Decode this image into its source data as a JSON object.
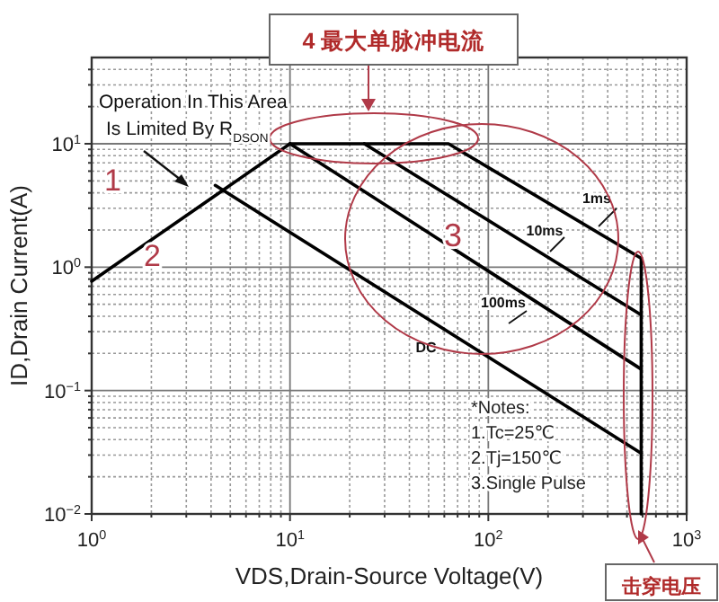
{
  "chart_data": {
    "type": "line",
    "xlabel": "VDS,Drain-Source Voltage(V)",
    "ylabel": "ID,Drain Current(A)",
    "log": "xy",
    "xlim": [
      1,
      1000
    ],
    "ylim": [
      0.01,
      50
    ],
    "xticks": [
      {
        "value": 1,
        "label": "10$^{0}$"
      },
      {
        "value": 10,
        "label": "10$^{1}$"
      },
      {
        "value": 100,
        "label": "10$^{2}$"
      },
      {
        "value": 1000,
        "label": "10$^{3}$"
      }
    ],
    "yticks": [
      {
        "value": 0.01,
        "label": "10$^{−2}$"
      },
      {
        "value": 0.1,
        "label": "10$^{−1}$"
      },
      {
        "value": 1,
        "label": "10$^{0}$"
      },
      {
        "value": 10,
        "label": "10$^{1}$"
      }
    ],
    "grid": true,
    "line_style": "solid",
    "series": [
      {
        "color": "#000000",
        "x": [
          1,
          10
        ],
        "values": [
          0.77,
          10
        ]
      },
      {
        "name": "1ms",
        "color": "#000000",
        "x": [
          10,
          63,
          590,
          590
        ],
        "values": [
          10,
          10,
          1.18,
          0.01
        ]
      },
      {
        "name": "10ms",
        "color": "#000000",
        "x": [
          23.7,
          590
        ],
        "values": [
          10,
          0.41
        ]
      },
      {
        "name": "100ms",
        "color": "#000000",
        "x": [
          10,
          590
        ],
        "values": [
          10,
          0.149
        ]
      },
      {
        "name": "DC",
        "color": "#000000",
        "x": [
          4.2,
          590
        ],
        "values": [
          4.6,
          0.031
        ]
      }
    ],
    "annotations": [
      "Operation In This Area\nIs Limited By R$_{DSON}$",
      "1",
      "2",
      "3",
      "4 最大单脉冲电流",
      "击穿电压",
      "*Notes:",
      "1.Tc=25℃",
      "2.Tj=150℃",
      "3.Single Pulse"
    ]
  }
}
